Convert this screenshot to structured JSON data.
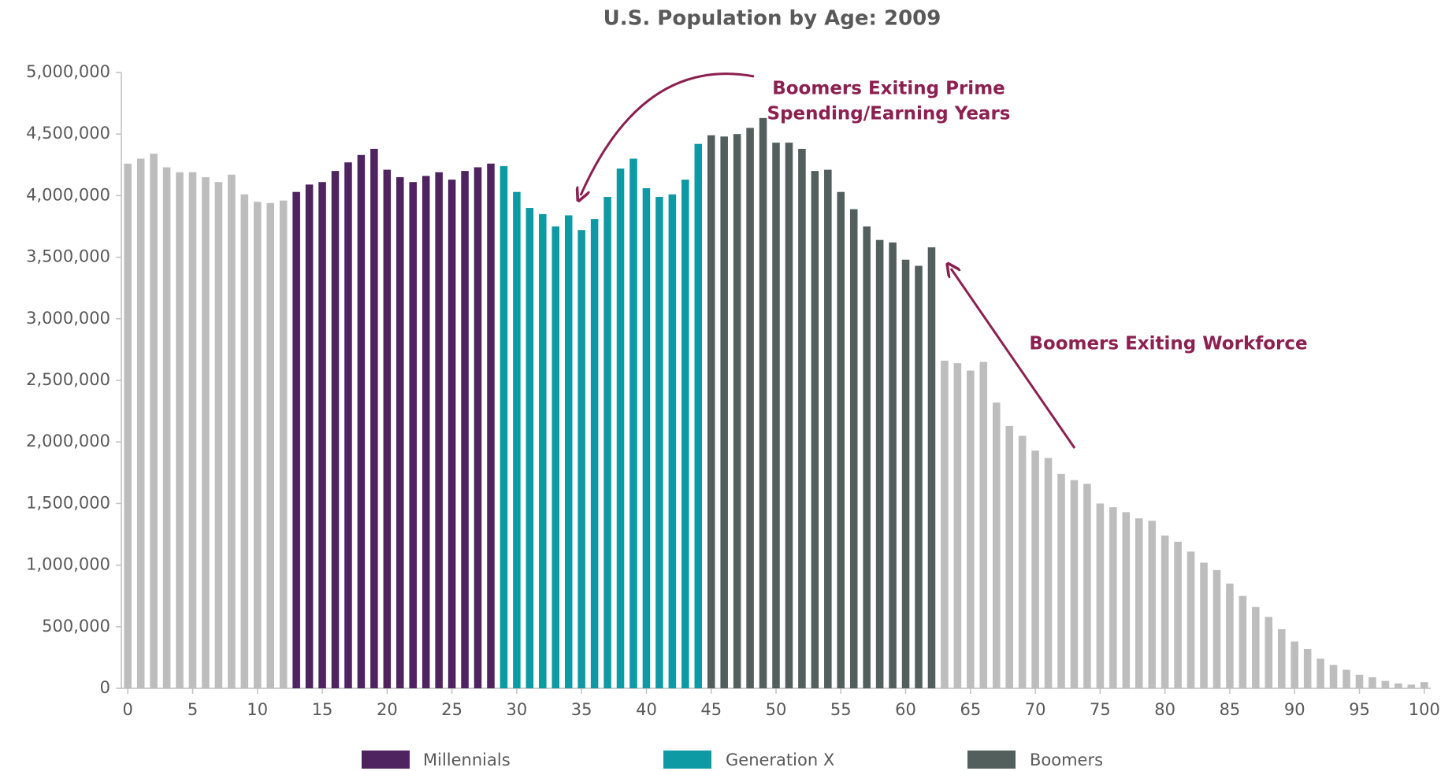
{
  "chart_data": {
    "type": "bar",
    "title": "U.S. Population by Age: 2009",
    "x": [
      0,
      1,
      2,
      3,
      4,
      5,
      6,
      7,
      8,
      9,
      10,
      11,
      12,
      13,
      14,
      15,
      16,
      17,
      18,
      19,
      20,
      21,
      22,
      23,
      24,
      25,
      26,
      27,
      28,
      29,
      30,
      31,
      32,
      33,
      34,
      35,
      36,
      37,
      38,
      39,
      40,
      41,
      42,
      43,
      44,
      45,
      46,
      47,
      48,
      49,
      50,
      51,
      52,
      53,
      54,
      55,
      56,
      57,
      58,
      59,
      60,
      61,
      62,
      63,
      64,
      65,
      66,
      67,
      68,
      69,
      70,
      71,
      72,
      73,
      74,
      75,
      76,
      77,
      78,
      79,
      80,
      81,
      82,
      83,
      84,
      85,
      86,
      87,
      88,
      89,
      90,
      91,
      92,
      93,
      94,
      95,
      96,
      97,
      98,
      99,
      100
    ],
    "values": [
      4260000,
      4300000,
      4340000,
      4230000,
      4190000,
      4190000,
      4150000,
      4110000,
      4170000,
      4010000,
      3950000,
      3940000,
      3960000,
      4030000,
      4090000,
      4110000,
      4200000,
      4270000,
      4330000,
      4380000,
      4210000,
      4150000,
      4110000,
      4160000,
      4190000,
      4130000,
      4200000,
      4230000,
      4260000,
      4240000,
      4030000,
      3900000,
      3850000,
      3750000,
      3840000,
      3720000,
      3810000,
      3990000,
      4220000,
      4300000,
      4060000,
      3990000,
      4010000,
      4130000,
      4420000,
      4490000,
      4480000,
      4500000,
      4550000,
      4630000,
      4430000,
      4430000,
      4380000,
      4200000,
      4210000,
      4030000,
      3890000,
      3750000,
      3640000,
      3620000,
      3480000,
      3430000,
      3580000,
      2660000,
      2640000,
      2580000,
      2650000,
      2320000,
      2130000,
      2050000,
      1930000,
      1870000,
      1740000,
      1690000,
      1660000,
      1500000,
      1470000,
      1430000,
      1380000,
      1360000,
      1240000,
      1190000,
      1110000,
      1020000,
      960000,
      850000,
      750000,
      660000,
      580000,
      480000,
      380000,
      320000,
      240000,
      190000,
      150000,
      110000,
      90000,
      60000,
      40000,
      30000,
      50000
    ],
    "bar_colors": [
      "#bdbdbd",
      "#bdbdbd",
      "#bdbdbd",
      "#bdbdbd",
      "#bdbdbd",
      "#bdbdbd",
      "#bdbdbd",
      "#bdbdbd",
      "#bdbdbd",
      "#bdbdbd",
      "#bdbdbd",
      "#bdbdbd",
      "#bdbdbd",
      "#4f2260",
      "#4f2260",
      "#4f2260",
      "#4f2260",
      "#4f2260",
      "#4f2260",
      "#4f2260",
      "#4f2260",
      "#4f2260",
      "#4f2260",
      "#4f2260",
      "#4f2260",
      "#4f2260",
      "#4f2260",
      "#4f2260",
      "#4f2260",
      "#0e9aa5",
      "#0e9aa5",
      "#0e9aa5",
      "#0e9aa5",
      "#0e9aa5",
      "#0e9aa5",
      "#0e9aa5",
      "#0e9aa5",
      "#0e9aa5",
      "#0e9aa5",
      "#0e9aa5",
      "#0e9aa5",
      "#0e9aa5",
      "#0e9aa5",
      "#0e9aa5",
      "#0e9aa5",
      "#535f5c",
      "#535f5c",
      "#535f5c",
      "#535f5c",
      "#535f5c",
      "#535f5c",
      "#535f5c",
      "#535f5c",
      "#535f5c",
      "#535f5c",
      "#535f5c",
      "#535f5c",
      "#535f5c",
      "#535f5c",
      "#535f5c",
      "#535f5c",
      "#535f5c",
      "#535f5c",
      "#bdbdbd",
      "#bdbdbd",
      "#bdbdbd",
      "#bdbdbd",
      "#bdbdbd",
      "#bdbdbd",
      "#bdbdbd",
      "#bdbdbd",
      "#bdbdbd",
      "#bdbdbd",
      "#bdbdbd",
      "#bdbdbd",
      "#bdbdbd",
      "#bdbdbd",
      "#bdbdbd",
      "#bdbdbd",
      "#bdbdbd",
      "#bdbdbd",
      "#bdbdbd",
      "#bdbdbd",
      "#bdbdbd",
      "#bdbdbd",
      "#bdbdbd",
      "#bdbdbd",
      "#bdbdbd",
      "#bdbdbd",
      "#bdbdbd",
      "#bdbdbd",
      "#bdbdbd",
      "#bdbdbd",
      "#bdbdbd",
      "#bdbdbd",
      "#bdbdbd",
      "#bdbdbd",
      "#bdbdbd",
      "#bdbdbd",
      "#bdbdbd",
      "#bdbdbd"
    ],
    "legend": [
      {
        "name": "Millennials",
        "color": "#4f2260"
      },
      {
        "name": "Generation X",
        "color": "#0e9aa5"
      },
      {
        "name": "Boomers",
        "color": "#535f5c"
      }
    ],
    "xlim": [
      -0.5,
      100.5
    ],
    "xticks": [
      0,
      5,
      10,
      15,
      20,
      25,
      30,
      35,
      40,
      45,
      50,
      55,
      60,
      65,
      70,
      75,
      80,
      85,
      90,
      95,
      100
    ],
    "ylim": [
      0,
      5000000
    ],
    "yticks": [
      0,
      {
        "value": 500000,
        "label": "500,000"
      },
      {
        "value": 1000000,
        "label": "1,000,000"
      },
      {
        "value": 1500000,
        "label": "1,500,000"
      },
      {
        "value": 2000000,
        "label": "2,000,000"
      },
      {
        "value": 2500000,
        "label": "2,500,000"
      },
      {
        "value": 3000000,
        "label": "3,000,000"
      },
      {
        "value": 3500000,
        "label": "3,500,000"
      },
      {
        "value": 4000000,
        "label": "4,000,000"
      },
      {
        "value": 4500000,
        "label": "4,500,000"
      },
      {
        "value": 5000000,
        "label": "5,000,000"
      }
    ],
    "grid": false,
    "annotations": [
      {
        "lines": [
          "Boomers Exiting Prime",
          "Spending/Earning Years"
        ],
        "color": "#8c2050"
      },
      {
        "lines": [
          "Boomers Exiting Workforce"
        ],
        "color": "#8c2050"
      }
    ]
  }
}
